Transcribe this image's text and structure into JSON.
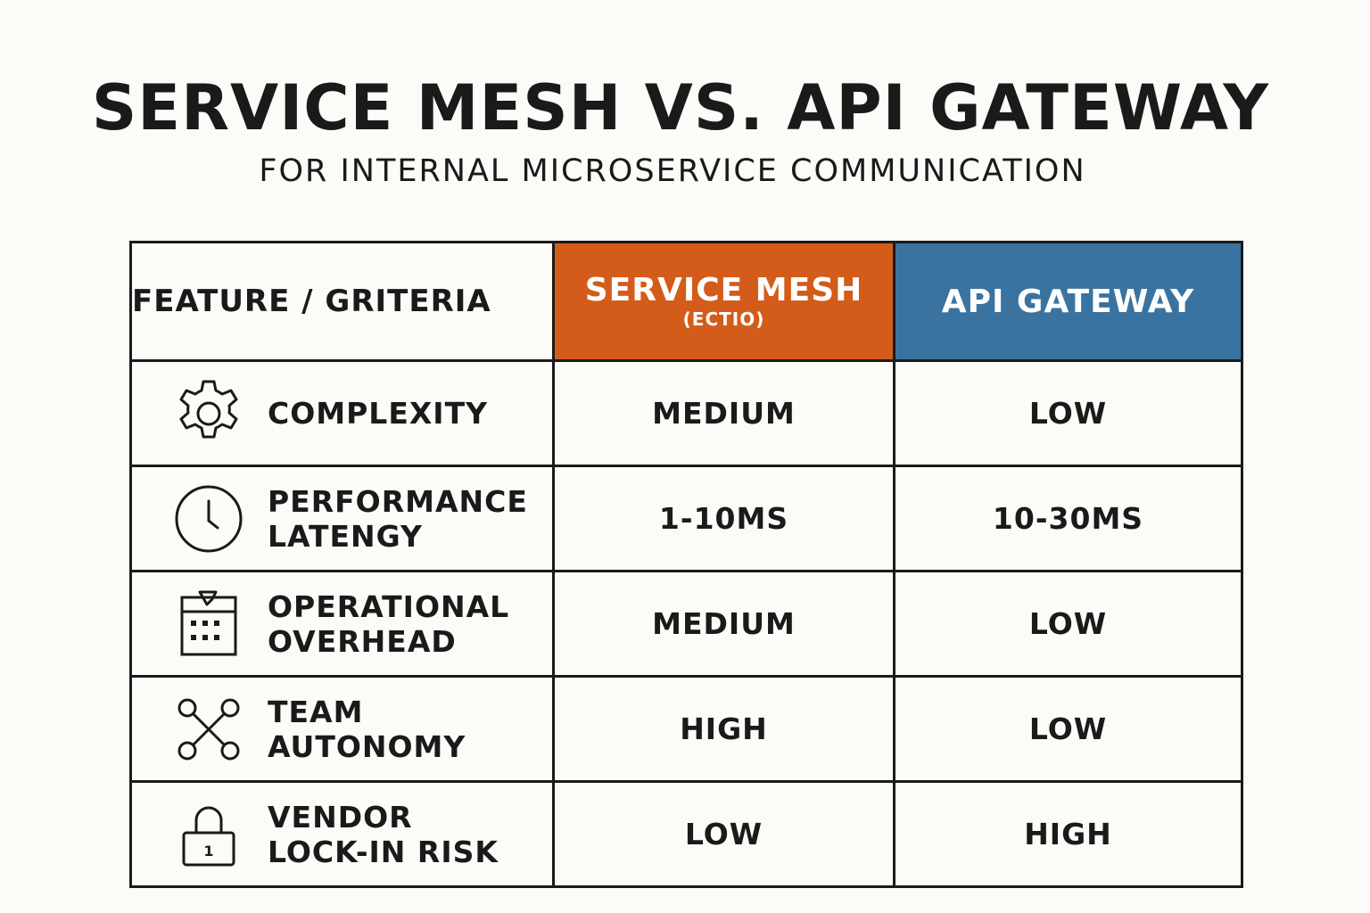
{
  "title": "SERVICE MESH VS. API GATEWAY",
  "subtitle": "FOR INTERNAL MICROSERVICE COMMUNICATION",
  "colors": {
    "service_mesh_header": "#d35c1a",
    "api_gateway_header": "#3a73a0",
    "background": "#fcfbf7",
    "border": "#1a1a1a"
  },
  "table": {
    "headers": {
      "feature": "FEATURE / GRITERIA",
      "service_mesh": "SERVICE MESH",
      "service_mesh_sub": "(ECTIO)",
      "api_gateway": "API GATEWAY"
    },
    "rows": [
      {
        "icon": "gear-icon",
        "label_line1": "COMPLEXITY",
        "label_line2": "",
        "service_mesh": "MEDIUM",
        "api_gateway": "LOW"
      },
      {
        "icon": "clock-icon",
        "label_line1": "PERFORMANCE",
        "label_line2": "LATENGY",
        "service_mesh": "1-10MS",
        "api_gateway": "10-30MS"
      },
      {
        "icon": "calendar-icon",
        "label_line1": "OPERATIONAL",
        "label_line2": "OVERHEAD",
        "service_mesh": "MEDIUM",
        "api_gateway": "LOW"
      },
      {
        "icon": "network-icon",
        "label_line1": "TEAM",
        "label_line2": "AUTONOMY",
        "service_mesh": "HIGH",
        "api_gateway": "LOW"
      },
      {
        "icon": "lock-icon",
        "label_line1": "VENDOR",
        "label_line2": "LOCK-IN RISK",
        "service_mesh": "LOW",
        "api_gateway": "HIGH"
      }
    ],
    "lock_icon_digit": "1"
  }
}
